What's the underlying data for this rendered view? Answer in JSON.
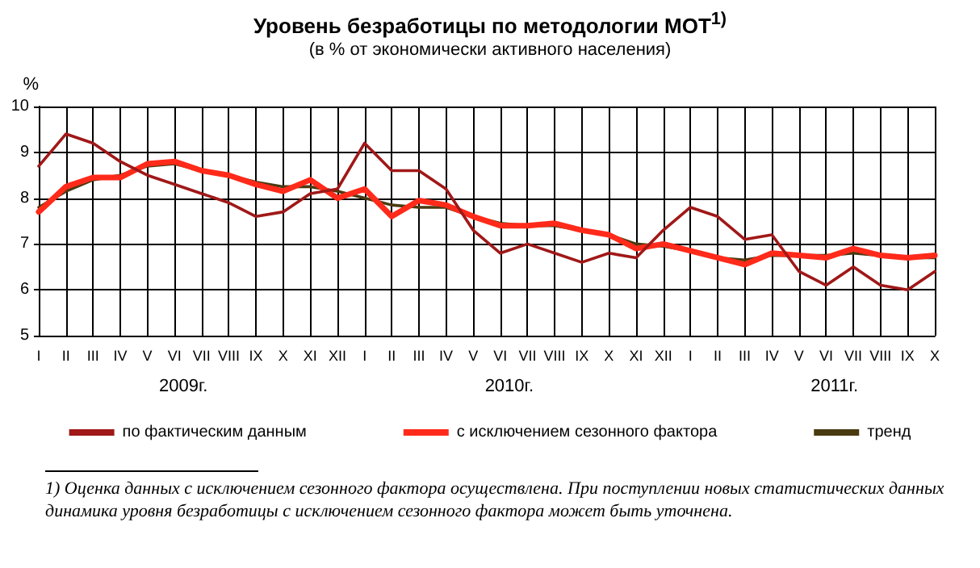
{
  "chart_data": {
    "type": "line",
    "title": "Уровень безработицы по методологии МОТ$^{1)}$",
    "subtitle": "(в % от экономически активного населения)",
    "ylabel": "%",
    "categories": [
      "I",
      "II",
      "III",
      "IV",
      "V",
      "VI",
      "VII",
      "VIII",
      "IX",
      "X",
      "XI",
      "XII",
      "I",
      "II",
      "III",
      "IV",
      "V",
      "VI",
      "VII",
      "VIII",
      "IX",
      "X",
      "XI",
      "XII",
      "I",
      "II",
      "III",
      "IV",
      "V",
      "VI",
      "VII",
      "VIII",
      "IX",
      "X"
    ],
    "series": [
      {
        "name": "по фактическим данным",
        "color": "#a01818",
        "values": [
          8.7,
          9.4,
          9.2,
          8.8,
          8.5,
          8.3,
          8.1,
          7.9,
          7.6,
          7.7,
          8.1,
          8.2,
          9.2,
          8.6,
          8.6,
          8.2,
          7.3,
          6.8,
          7.0,
          6.8,
          6.6,
          6.8,
          6.7,
          7.3,
          7.8,
          7.6,
          7.1,
          7.2,
          6.4,
          6.1,
          6.5,
          6.1,
          6.0,
          6.4
        ]
      },
      {
        "name": "с исключением сезонного фактора",
        "color": "#ff2a1a",
        "values": [
          7.7,
          8.25,
          8.45,
          8.45,
          8.75,
          8.8,
          8.6,
          8.5,
          8.3,
          8.15,
          8.4,
          8.0,
          8.2,
          7.6,
          7.95,
          7.85,
          7.6,
          7.4,
          7.4,
          7.45,
          7.3,
          7.2,
          6.9,
          7.0,
          6.85,
          6.7,
          6.55,
          6.8,
          6.75,
          6.7,
          6.9,
          6.75,
          6.7,
          6.75
        ]
      },
      {
        "name": "тренд",
        "color": "#4a3a10",
        "values": [
          7.8,
          8.15,
          8.4,
          8.5,
          8.7,
          8.75,
          8.6,
          8.5,
          8.35,
          8.25,
          8.25,
          8.15,
          8.0,
          7.85,
          7.8,
          7.8,
          7.6,
          7.45,
          7.4,
          7.4,
          7.3,
          7.2,
          7.0,
          6.95,
          6.85,
          6.7,
          6.65,
          6.75,
          6.75,
          6.75,
          6.8,
          6.75,
          6.7,
          6.7
        ]
      }
    ],
    "ylim": [
      5,
      10
    ],
    "yticks": [
      5,
      6,
      7,
      8,
      9,
      10
    ],
    "grid": true,
    "legend": "bottom",
    "marker": "none",
    "line_style": "solid",
    "annotations": [
      "2009г.",
      "2010г.",
      "2011г.",
      "1) Оценка данных с исключением сезонного фактора осуществлена. При поступлении новых статистических данных динамика уровня безработицы с исключением сезонного фактора может быть уточнена."
    ]
  }
}
